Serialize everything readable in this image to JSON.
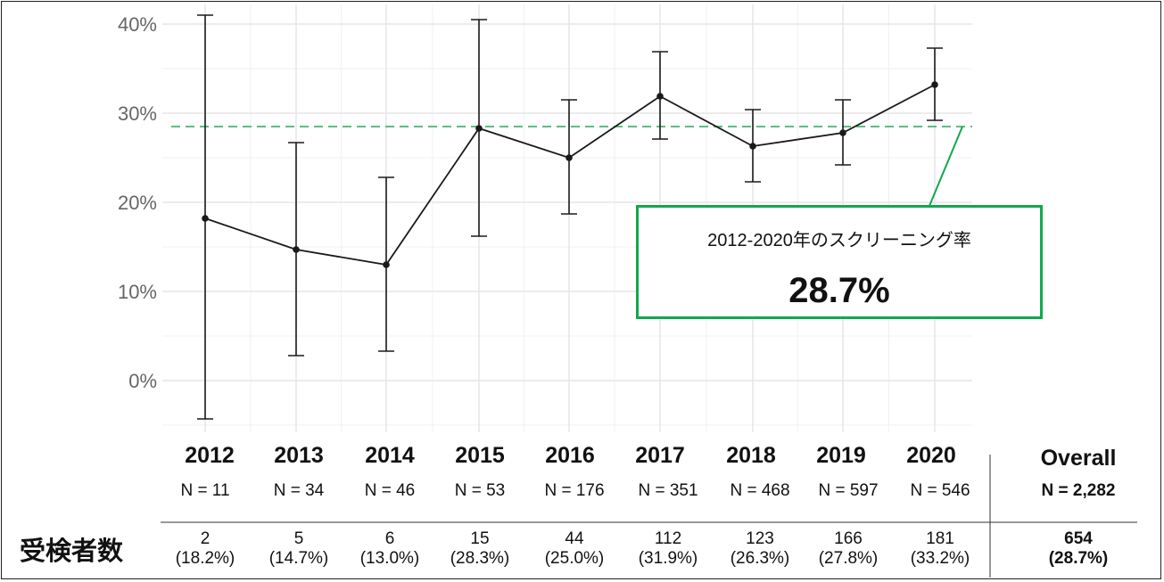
{
  "chart_data": {
    "type": "line",
    "x": [
      "2012",
      "2013",
      "2014",
      "2015",
      "2016",
      "2017",
      "2018",
      "2019",
      "2020"
    ],
    "series": [
      {
        "values": [
          18.2,
          14.7,
          13.0,
          28.3,
          25.0,
          31.9,
          26.3,
          27.8,
          33.2
        ],
        "ci_low": [
          -4.3,
          2.8,
          3.3,
          16.2,
          18.7,
          27.1,
          22.3,
          24.2,
          29.2
        ],
        "ci_high": [
          41.0,
          26.7,
          22.8,
          40.5,
          31.5,
          36.9,
          30.4,
          31.5,
          37.3
        ]
      }
    ],
    "reference_line": 28.2,
    "ylim": [
      -6,
      41
    ],
    "yticks": [
      0,
      10,
      20,
      30,
      40
    ],
    "ytick_labels": [
      "0%",
      "10%",
      "20%",
      "30%",
      "40%"
    ],
    "grid": true,
    "colors": {
      "line": "#1a1a1a",
      "reference": "#57c07e",
      "callout_border": "#11a84c",
      "grid": "#e6e6e6",
      "tick_text": "#666666"
    }
  },
  "callout": {
    "label": "2012-2020年のスクリーニング率",
    "value": "28.7%"
  },
  "table": {
    "row_label": "受検者数",
    "years": [
      "2012",
      "2013",
      "2014",
      "2015",
      "2016",
      "2017",
      "2018",
      "2019",
      "2020"
    ],
    "n": [
      "N = 11",
      "N = 34",
      "N = 46",
      "N = 53",
      "N = 176",
      "N = 351",
      "N = 468",
      "N = 597",
      "N = 546"
    ],
    "counts": [
      "2",
      "5",
      "6",
      "15",
      "44",
      "112",
      "123",
      "166",
      "181"
    ],
    "pcts": [
      "(18.2%)",
      "(14.7%)",
      "(13.0%)",
      "(28.3%)",
      "(25.0%)",
      "(31.9%)",
      "(26.3%)",
      "(27.8%)",
      "(33.2%)"
    ],
    "overall": {
      "title": "Overall",
      "n": "N = 2,282",
      "count": "654",
      "pct": "(28.7%)"
    }
  }
}
